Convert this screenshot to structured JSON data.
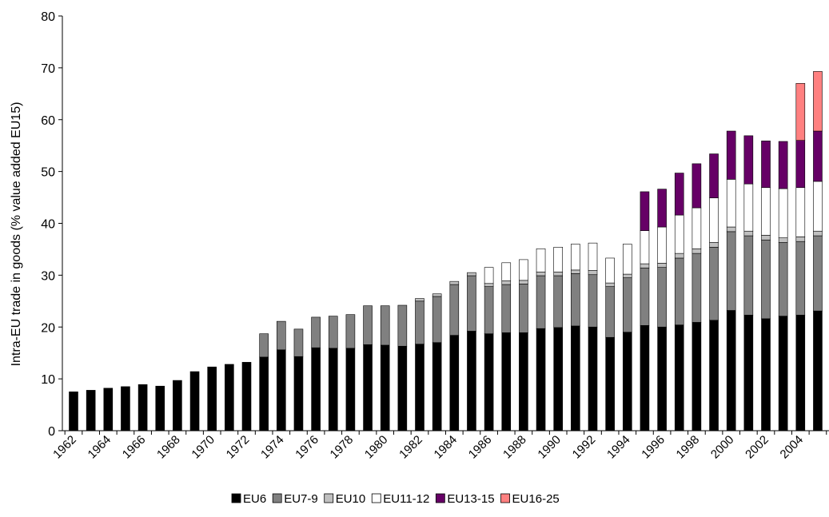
{
  "chart_data": {
    "type": "bar",
    "stacked": true,
    "title": "",
    "xlabel": "",
    "ylabel": "Intra-EU trade in goods (% value added EU15)",
    "ylim": [
      0,
      80
    ],
    "yticks": [
      0,
      10,
      20,
      30,
      40,
      50,
      60,
      70,
      80
    ],
    "grid": false,
    "legend_position": "bottom",
    "categories": [
      "1962",
      "1963",
      "1964",
      "1965",
      "1966",
      "1967",
      "1968",
      "1969",
      "1970",
      "1971",
      "1972",
      "1973",
      "1974",
      "1975",
      "1976",
      "1977",
      "1978",
      "1979",
      "1980",
      "1981",
      "1982",
      "1983",
      "1984",
      "1985",
      "1986",
      "1987",
      "1988",
      "1989",
      "1990",
      "1991",
      "1992",
      "1993",
      "1994",
      "1995",
      "1996",
      "1997",
      "1998",
      "1999",
      "2000",
      "2001",
      "2002",
      "2003",
      "2004",
      "2005"
    ],
    "x_tick_labels": [
      "1962",
      "1964",
      "1966",
      "1968",
      "1970",
      "1972",
      "1974",
      "1976",
      "1978",
      "1980",
      "1982",
      "1984",
      "1986",
      "1988",
      "1990",
      "1992",
      "1994",
      "1996",
      "1998",
      "2000",
      "2002",
      "2004"
    ],
    "series": [
      {
        "name": "EU6",
        "color": "#000000",
        "values": [
          7.5,
          7.8,
          8.2,
          8.5,
          8.9,
          8.6,
          9.7,
          11.4,
          12.3,
          12.8,
          13.2,
          14.2,
          15.6,
          14.3,
          16.0,
          15.9,
          15.9,
          16.6,
          16.5,
          16.3,
          16.7,
          17.0,
          18.4,
          19.2,
          18.7,
          18.9,
          18.9,
          19.7,
          19.9,
          20.2,
          20.0,
          18.0,
          19.0,
          20.3,
          20.0,
          20.4,
          20.9,
          21.3,
          23.2,
          22.3,
          21.6,
          22.1,
          22.3,
          23.1
        ]
      },
      {
        "name": "EU7-9",
        "color": "#808080",
        "values": [
          0,
          0,
          0,
          0,
          0,
          0,
          0,
          0,
          0,
          0,
          0,
          4.5,
          5.5,
          5.3,
          5.9,
          6.2,
          6.5,
          7.5,
          7.6,
          7.9,
          8.3,
          8.9,
          9.8,
          10.7,
          9.1,
          9.3,
          9.4,
          10.2,
          10.0,
          10.1,
          10.1,
          9.8,
          10.5,
          11.1,
          11.5,
          12.9,
          13.3,
          14.1,
          15.2,
          15.3,
          15.2,
          14.2,
          14.2,
          14.5
        ]
      },
      {
        "name": "EU10",
        "color": "#c0c0c0",
        "values": [
          0,
          0,
          0,
          0,
          0,
          0,
          0,
          0,
          0,
          0,
          0,
          0,
          0,
          0,
          0,
          0,
          0,
          0,
          0,
          0,
          0.5,
          0.5,
          0.6,
          0.6,
          0.6,
          0.7,
          0.7,
          0.7,
          0.7,
          0.7,
          0.8,
          0.7,
          0.7,
          0.8,
          0.8,
          0.9,
          0.9,
          0.9,
          0.9,
          0.9,
          0.9,
          0.9,
          0.9,
          0.9
        ]
      },
      {
        "name": "EU11-12",
        "color": "#ffffff",
        "values": [
          0,
          0,
          0,
          0,
          0,
          0,
          0,
          0,
          0,
          0,
          0,
          0,
          0,
          0,
          0,
          0,
          0,
          0,
          0,
          0,
          0,
          0,
          0,
          0,
          3.1,
          3.5,
          4.0,
          4.5,
          4.8,
          5.0,
          5.3,
          4.8,
          5.8,
          6.4,
          7.0,
          7.4,
          7.9,
          8.6,
          9.2,
          9.1,
          9.2,
          9.5,
          9.5,
          9.6
        ]
      },
      {
        "name": "EU13-15",
        "color": "#660066",
        "values": [
          0,
          0,
          0,
          0,
          0,
          0,
          0,
          0,
          0,
          0,
          0,
          0,
          0,
          0,
          0,
          0,
          0,
          0,
          0,
          0,
          0,
          0,
          0,
          0,
          0,
          0,
          0,
          0,
          0,
          0,
          0,
          0,
          0,
          7.5,
          7.3,
          8.1,
          8.5,
          8.5,
          9.3,
          9.3,
          9.0,
          9.1,
          9.1,
          9.7
        ]
      },
      {
        "name": "EU16-25",
        "color": "#ff8080",
        "values": [
          0,
          0,
          0,
          0,
          0,
          0,
          0,
          0,
          0,
          0,
          0,
          0,
          0,
          0,
          0,
          0,
          0,
          0,
          0,
          0,
          0,
          0,
          0,
          0,
          0,
          0,
          0,
          0,
          0,
          0,
          0,
          0,
          0,
          0,
          0,
          0,
          0,
          0,
          0,
          0,
          0,
          0,
          11.0,
          11.5
        ]
      }
    ]
  }
}
